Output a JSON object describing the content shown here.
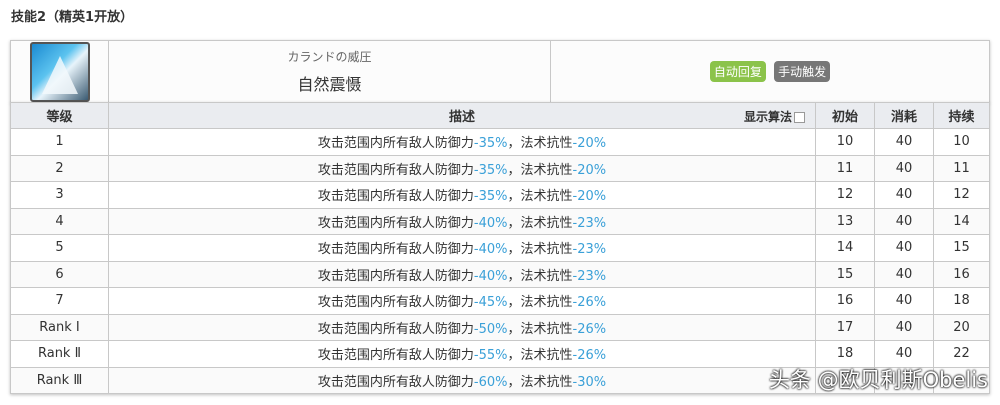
{
  "section_title": "技能2（精英1开放）",
  "skill": {
    "icon": "skill-mountain-icon",
    "name_jp": "カランドの威圧",
    "name_cn": "自然震慑",
    "tags": [
      {
        "label": "自动回复",
        "color": "#8bc34a"
      },
      {
        "label": "手动触发",
        "color": "#777777"
      }
    ]
  },
  "headers": {
    "level": "等级",
    "desc": "描述",
    "algo": "显示算法",
    "init": "初始",
    "cost": "消耗",
    "dur": "持续"
  },
  "desc_prefix": "攻击范围内所有敌人防御力",
  "desc_mid": "，法术抗性",
  "rows": [
    {
      "level": "1",
      "def": "-35%",
      "res": "-20%",
      "init": "10",
      "cost": "40",
      "dur": "10"
    },
    {
      "level": "2",
      "def": "-35%",
      "res": "-20%",
      "init": "11",
      "cost": "40",
      "dur": "11"
    },
    {
      "level": "3",
      "def": "-35%",
      "res": "-20%",
      "init": "12",
      "cost": "40",
      "dur": "12"
    },
    {
      "level": "4",
      "def": "-40%",
      "res": "-23%",
      "init": "13",
      "cost": "40",
      "dur": "14"
    },
    {
      "level": "5",
      "def": "-40%",
      "res": "-23%",
      "init": "14",
      "cost": "40",
      "dur": "15"
    },
    {
      "level": "6",
      "def": "-40%",
      "res": "-23%",
      "init": "15",
      "cost": "40",
      "dur": "16"
    },
    {
      "level": "7",
      "def": "-45%",
      "res": "-26%",
      "init": "16",
      "cost": "40",
      "dur": "18"
    },
    {
      "level": "Rank Ⅰ",
      "def": "-50%",
      "res": "-26%",
      "init": "17",
      "cost": "40",
      "dur": "20"
    },
    {
      "level": "Rank Ⅱ",
      "def": "-55%",
      "res": "-26%",
      "init": "18",
      "cost": "40",
      "dur": "22"
    },
    {
      "level": "Rank Ⅲ",
      "def": "-60%",
      "res": "-30%",
      "init": "",
      "cost": "",
      "dur": ""
    }
  ],
  "highlight_color": "#3aa0d8",
  "watermark": "头条 @欧贝利斯Obelis"
}
